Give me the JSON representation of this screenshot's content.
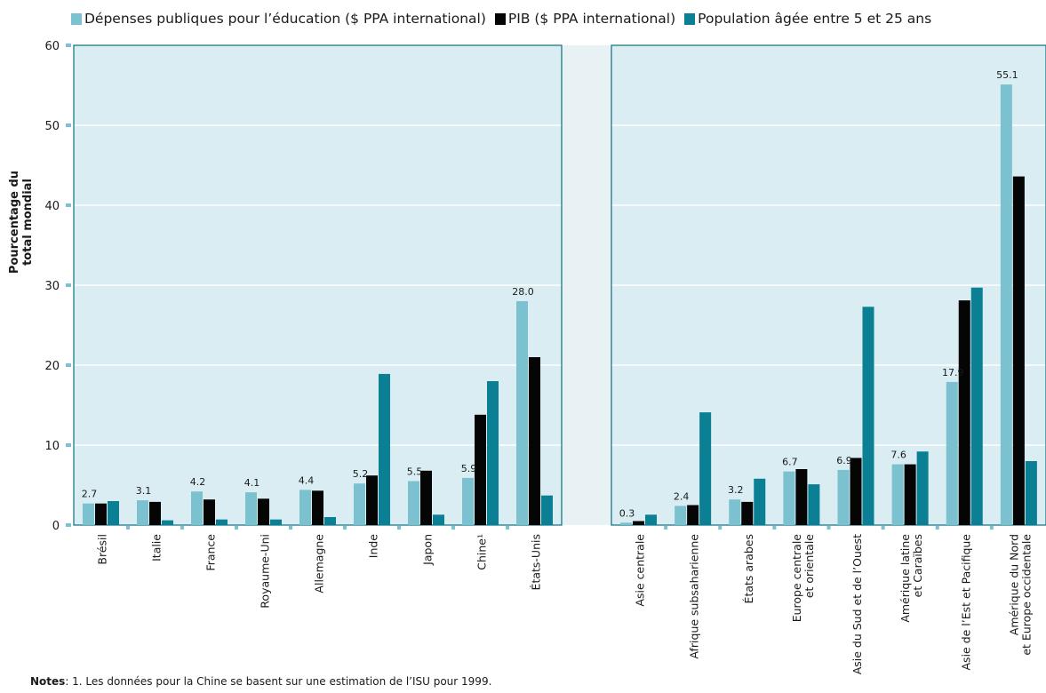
{
  "legend": [
    {
      "label": "Dépenses publiques pour l’éducation ($ PPA international)",
      "color": "#7cc1cf"
    },
    {
      "label": "PIB ($ PPA international)",
      "color": "#050505"
    },
    {
      "label": "Population âgée entre 5 et 25 ans",
      "color": "#0b7f93"
    }
  ],
  "notes": {
    "label": "Notes",
    "text": ": 1. Les données pour la Chine se basent sur une estimation de l’ISU pour 1999."
  },
  "chart_data": [
    {
      "type": "bar",
      "title": "",
      "xlabel": "",
      "ylabel": "Pourcentage du total mondial",
      "ylim": [
        0,
        60
      ],
      "yticks": [
        0,
        10,
        20,
        30,
        40,
        50,
        60
      ],
      "grid": true,
      "legend_position": "top",
      "categories": [
        "Brésil",
        "Italie",
        "France",
        "Royaume-Uni",
        "Allemagne",
        "Inde",
        "Japon",
        "Chine¹",
        "États-Unis"
      ],
      "series": [
        {
          "name": "Dépenses publiques pour l’éducation ($ PPA international)",
          "values": [
            2.7,
            3.1,
            4.2,
            4.1,
            4.4,
            5.2,
            5.5,
            5.9,
            28.0
          ]
        },
        {
          "name": "PIB ($ PPA international)",
          "values": [
            2.7,
            2.9,
            3.2,
            3.3,
            4.3,
            6.2,
            6.8,
            13.8,
            21.0
          ]
        },
        {
          "name": "Population âgée entre 5 et 25 ans",
          "values": [
            3.0,
            0.6,
            0.7,
            0.7,
            1.0,
            18.9,
            1.3,
            18.0,
            3.7
          ]
        }
      ],
      "data_labels": [
        "2.7",
        "3.1",
        "4.2",
        "4.1",
        "4.4",
        "5.2",
        "5.5",
        "5.9",
        "28.0"
      ]
    },
    {
      "type": "bar",
      "title": "",
      "xlabel": "",
      "ylabel": "",
      "ylim": [
        0,
        60
      ],
      "grid": true,
      "categories": [
        [
          "Asie centrale"
        ],
        [
          "Afrique subsaharienne"
        ],
        [
          "États arabes"
        ],
        [
          "Europe centrale",
          "et orientale"
        ],
        [
          "Asie du Sud et de l’Ouest"
        ],
        [
          "Amérique latine",
          "et Caraïbes"
        ],
        [
          "Asie de l’Est et Pacifique"
        ],
        [
          "Amérique du Nord",
          "et Europe occidentale"
        ]
      ],
      "series": [
        {
          "name": "Dépenses publiques pour l’éducation ($ PPA international)",
          "values": [
            0.3,
            2.4,
            3.2,
            6.7,
            6.9,
            7.6,
            17.9,
            55.1
          ]
        },
        {
          "name": "PIB ($ PPA international)",
          "values": [
            0.5,
            2.5,
            2.9,
            7.0,
            8.4,
            7.6,
            28.1,
            43.6
          ]
        },
        {
          "name": "Population âgée entre 5 et 25 ans",
          "values": [
            1.3,
            14.1,
            5.8,
            5.1,
            27.3,
            9.2,
            29.7,
            8.0
          ]
        }
      ],
      "data_labels": [
        "0.3",
        "2.4",
        "3.2",
        "6.7",
        "6.9",
        "7.6",
        "17.9",
        "55.1"
      ]
    }
  ]
}
